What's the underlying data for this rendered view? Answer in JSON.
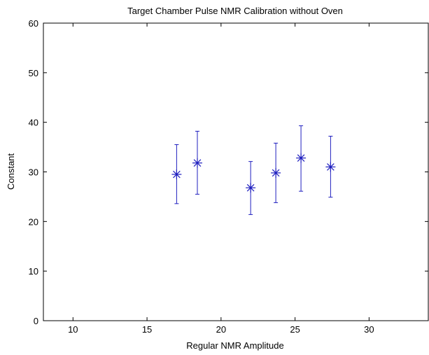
{
  "chart_data": {
    "type": "scatter",
    "title": "Target Chamber Pulse NMR Calibration without Oven",
    "xlabel": "Regular NMR Amplitude",
    "ylabel": "Constant",
    "xlim": [
      8,
      34
    ],
    "ylim": [
      0,
      60
    ],
    "xticks": [
      10,
      15,
      20,
      25,
      30
    ],
    "yticks": [
      0,
      10,
      20,
      30,
      40,
      50,
      60
    ],
    "grid": false,
    "marker": "asterisk",
    "color": "#1f1fbf",
    "points": [
      {
        "x": 17.0,
        "y": 29.5,
        "ylow": 23.6,
        "yhigh": 35.5
      },
      {
        "x": 18.4,
        "y": 31.8,
        "ylow": 25.5,
        "yhigh": 38.2
      },
      {
        "x": 22.0,
        "y": 26.8,
        "ylow": 21.4,
        "yhigh": 32.1
      },
      {
        "x": 23.7,
        "y": 29.8,
        "ylow": 23.8,
        "yhigh": 35.8
      },
      {
        "x": 25.4,
        "y": 32.8,
        "ylow": 26.1,
        "yhigh": 39.3
      },
      {
        "x": 27.4,
        "y": 31.0,
        "ylow": 24.9,
        "yhigh": 37.2
      }
    ]
  }
}
